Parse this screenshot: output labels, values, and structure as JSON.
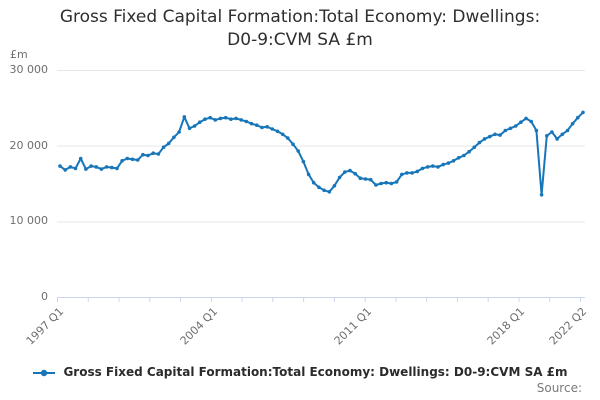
{
  "title": {
    "lines": [
      "Gross Fixed Capital Formation:Total Economy: Dwellings:",
      "D0-9:CVM SA £m"
    ]
  },
  "y_axis_unit": "£m",
  "legend": {
    "label": "Gross Fixed Capital Formation:Total Economy: Dwellings: D0-9:CVM SA £m"
  },
  "source_label": "Source:",
  "colors": {
    "series_blue": "#1776b9",
    "gridline": "#e6e6e6",
    "axis_line": "#ccd6eb",
    "tick_text": "#6e6e6e",
    "title_text": "#2e2e2e",
    "legend_text": "#2b2b2b",
    "source_text": "#7a7a7a"
  },
  "chart_data": {
    "type": "line",
    "title": "Gross Fixed Capital Formation:Total Economy: Dwellings: D0-9:CVM SA £m",
    "ylabel": "£m",
    "xlabel": "",
    "frequency": "quarterly",
    "x_start": "1997 Q1",
    "x_end": "2022 Q2",
    "ylim": [
      0,
      30000
    ],
    "yticks": [
      0,
      10000,
      20000,
      30000
    ],
    "ytick_labels": [
      "0",
      "10 000",
      "20 000",
      "30 000"
    ],
    "xtick_labels": [
      "1997 Q1",
      "2004 Q1",
      "2011 Q1",
      "2018 Q1",
      "2022 Q2"
    ],
    "grid": "horizontal",
    "legend_position": "bottom",
    "marker": "dot",
    "series": [
      {
        "name": "Gross Fixed Capital Formation:Total Economy: Dwellings: D0-9:CVM SA £m",
        "values": [
          17300,
          16800,
          17200,
          17000,
          18300,
          16900,
          17300,
          17200,
          16900,
          17200,
          17100,
          17000,
          18000,
          18300,
          18200,
          18100,
          18800,
          18700,
          19000,
          18900,
          19800,
          20300,
          21100,
          21800,
          23800,
          22300,
          22600,
          23100,
          23500,
          23700,
          23400,
          23600,
          23700,
          23500,
          23600,
          23400,
          23200,
          22900,
          22700,
          22400,
          22500,
          22200,
          21900,
          21500,
          21000,
          20200,
          19300,
          17900,
          16200,
          15100,
          14500,
          14100,
          13900,
          14700,
          15800,
          16500,
          16700,
          16300,
          15700,
          15600,
          15500,
          14800,
          15000,
          15100,
          15000,
          15200,
          16200,
          16400,
          16400,
          16600,
          17000,
          17200,
          17300,
          17200,
          17500,
          17700,
          18000,
          18400,
          18700,
          19200,
          19800,
          20400,
          20900,
          21200,
          21500,
          21400,
          22000,
          22300,
          22600,
          23100,
          23600,
          23200,
          22000,
          13500,
          21300,
          21800,
          20900,
          21500,
          22000,
          22900,
          23700,
          24400
        ]
      }
    ]
  }
}
